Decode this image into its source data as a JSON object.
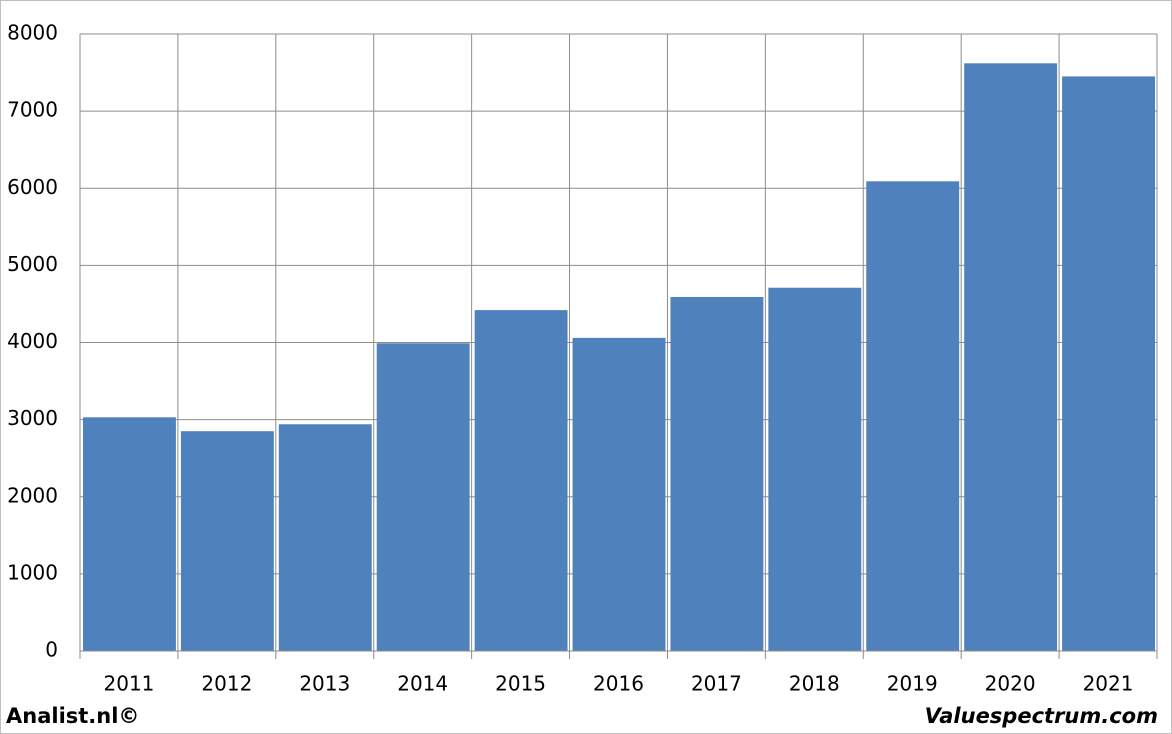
{
  "chart_data": {
    "type": "bar",
    "categories": [
      "2011",
      "2012",
      "2013",
      "2014",
      "2015",
      "2016",
      "2017",
      "2018",
      "2019",
      "2020",
      "2021"
    ],
    "values": [
      3030,
      2850,
      2940,
      3990,
      4420,
      4060,
      4590,
      4710,
      6090,
      7620,
      7450
    ],
    "color": "#4f81bd",
    "ylim": [
      0,
      8000
    ],
    "yticks": [
      0,
      1000,
      2000,
      3000,
      4000,
      5000,
      6000,
      7000,
      8000
    ],
    "grid": true,
    "source_left": "Analist.nl©",
    "source_right": "Valuespectrum.com"
  }
}
